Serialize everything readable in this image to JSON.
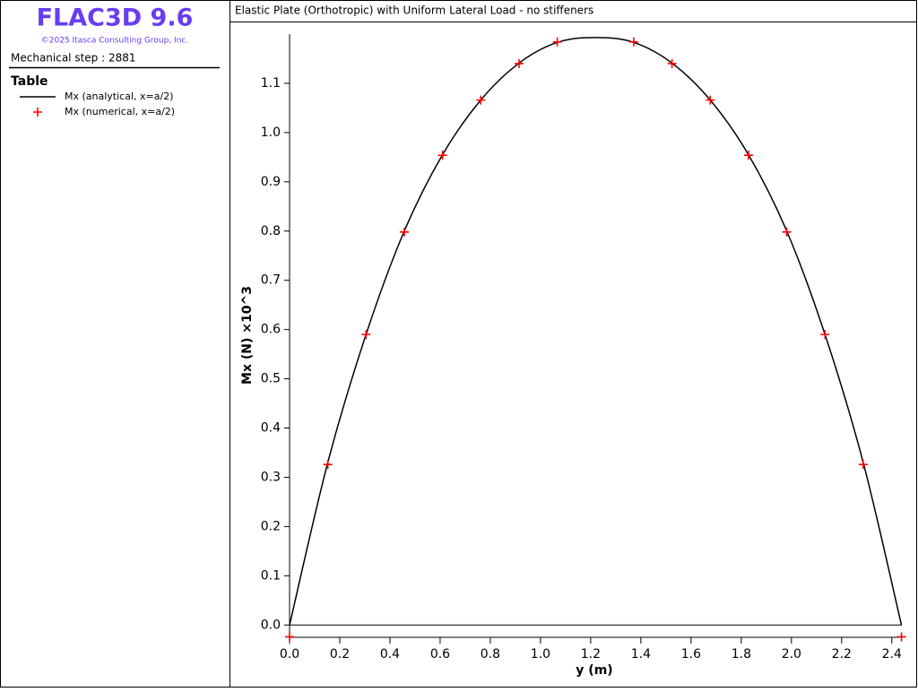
{
  "app": {
    "name": "FLAC3D 9.6",
    "copyright": "©2025 Itasca Consulting Group, Inc.",
    "step": "Mechanical step : 2881",
    "panel_title": "Table"
  },
  "chart_data": {
    "type": "line",
    "title": "Elastic Plate (Orthotropic) with Uniform Lateral Load - no stiffeners",
    "x_label": "y (m)",
    "y_label": "Mx (N) ×10^3",
    "xlim": [
      0,
      2.44
    ],
    "ylim": [
      -0.025,
      1.2
    ],
    "xticks": [
      {
        "value": 0,
        "label": "0.0"
      },
      0.2,
      0.4,
      0.6,
      0.8,
      {
        "value": 1,
        "label": "1.0"
      },
      1.2,
      1.4,
      1.6,
      1.8,
      {
        "value": 2,
        "label": "2.0"
      },
      2.2,
      2.4
    ],
    "yticks": [
      {
        "value": 0,
        "label": "0.0"
      },
      0.1,
      0.2,
      0.3,
      0.4,
      0.5,
      0.6,
      0.7,
      0.8,
      0.9,
      {
        "value": 1,
        "label": "1.0"
      },
      1.1
    ],
    "series": [
      {
        "name": "Mx (analytical, x=a/2)",
        "color": "#000000",
        "style": "line",
        "x": [
          0,
          0.1524,
          0.3048,
          0.4572,
          0.6096,
          0.762,
          0.9144,
          1.0668,
          1.2192,
          1.3716,
          1.524,
          1.6764,
          1.8288,
          1.9812,
          2.1336,
          2.286,
          2.4384
        ],
        "values": [
          0,
          0.33,
          0.59,
          0.8,
          0.955,
          1.066,
          1.141,
          1.183,
          1.193,
          1.183,
          1.141,
          1.066,
          0.955,
          0.8,
          0.59,
          0.33,
          0
        ]
      },
      {
        "name": "Mx (numerical, x=a/2)",
        "color": "#ff0000",
        "style": "marker",
        "x": [
          0,
          0.1524,
          0.3048,
          0.4572,
          0.6096,
          0.762,
          0.9144,
          1.0668,
          1.3716,
          1.524,
          1.6764,
          1.8288,
          1.9812,
          2.1336,
          2.286,
          2.4384
        ],
        "values": [
          -0.024,
          0.326,
          0.59,
          0.798,
          0.954,
          1.066,
          1.14,
          1.184,
          1.184,
          1.14,
          1.066,
          0.954,
          0.798,
          0.59,
          0.326,
          -0.024
        ]
      }
    ]
  }
}
